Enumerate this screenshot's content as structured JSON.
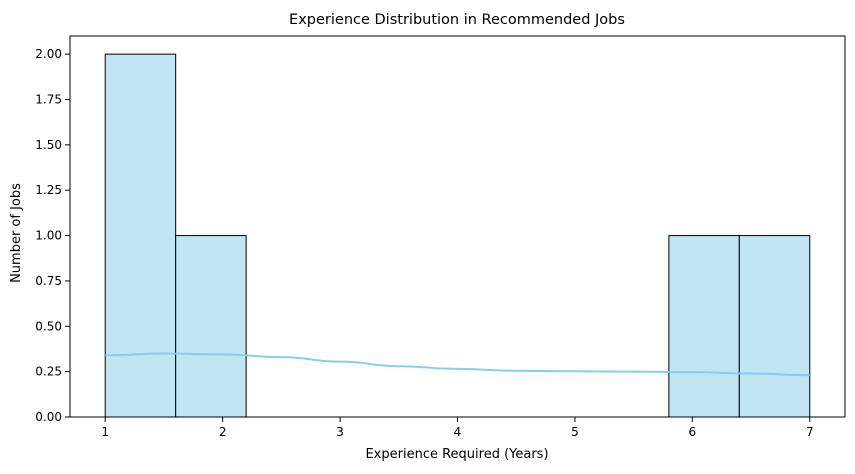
{
  "chart_data": {
    "type": "bar",
    "title": "Experience Distribution in Recommended Jobs",
    "xlabel": "Experience Required (Years)",
    "ylabel": "Number of Jobs",
    "xlim": [
      0.7,
      7.3
    ],
    "ylim": [
      0,
      2.1
    ],
    "x_ticks": [
      1,
      2,
      3,
      4,
      5,
      6,
      7
    ],
    "x_tick_labels": [
      "1",
      "2",
      "3",
      "4",
      "5",
      "6",
      "7"
    ],
    "y_ticks": [
      0,
      0.25,
      0.5,
      0.75,
      1.0,
      1.25,
      1.5,
      1.75,
      2.0
    ],
    "y_tick_labels": [
      "0.00",
      "0.25",
      "0.50",
      "0.75",
      "1.00",
      "1.25",
      "1.50",
      "1.75",
      "2.00"
    ],
    "bins": [
      {
        "start": 1.0,
        "end": 1.6,
        "count": 2
      },
      {
        "start": 1.6,
        "end": 2.2,
        "count": 1
      },
      {
        "start": 2.2,
        "end": 2.8,
        "count": 0
      },
      {
        "start": 2.8,
        "end": 3.4,
        "count": 0
      },
      {
        "start": 3.4,
        "end": 4.0,
        "count": 0
      },
      {
        "start": 4.0,
        "end": 4.6,
        "count": 0
      },
      {
        "start": 4.6,
        "end": 5.2,
        "count": 0
      },
      {
        "start": 5.2,
        "end": 5.8,
        "count": 0
      },
      {
        "start": 5.8,
        "end": 6.4,
        "count": 1
      },
      {
        "start": 6.4,
        "end": 7.0,
        "count": 1
      }
    ],
    "kde": {
      "x": [
        1,
        1.5,
        2,
        2.5,
        3,
        3.5,
        4,
        4.5,
        5,
        5.5,
        6,
        6.5,
        7
      ],
      "y": [
        0.34,
        0.35,
        0.345,
        0.33,
        0.305,
        0.28,
        0.265,
        0.255,
        0.252,
        0.25,
        0.247,
        0.24,
        0.23
      ]
    },
    "grid": false,
    "bar_fill": "#c2e5f4",
    "bar_edge": "#000000",
    "kde_color": "#87ceeb"
  }
}
